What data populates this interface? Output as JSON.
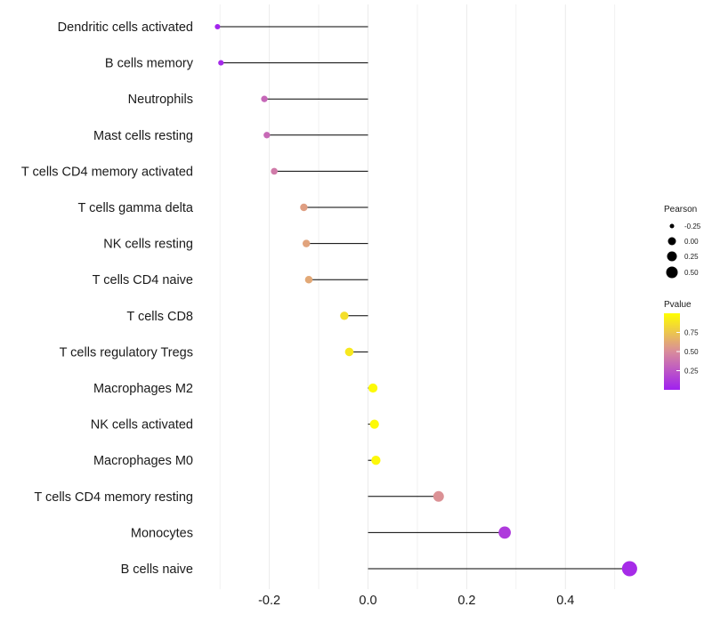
{
  "chart_data": {
    "type": "lollipop",
    "title": "",
    "xlabel": "",
    "ylabel": "",
    "xlim": [
      -0.3,
      0.54
    ],
    "xticks": [
      -0.2,
      0.0,
      0.2,
      0.4
    ],
    "xtick_labels": [
      "-0.2",
      "0.0",
      "0.2",
      "0.4"
    ],
    "categories": [
      "Dendritic cells activated",
      "B cells memory",
      "Neutrophils",
      "Mast cells resting",
      "T cells CD4 memory activated",
      "T cells gamma delta",
      "NK cells resting",
      "T cells CD4 naive",
      "T cells CD8",
      "T cells regulatory  Tregs",
      "Macrophages M2",
      "NK cells activated",
      "Macrophages M0",
      "T cells CD4 memory resting",
      "Monocytes",
      "B cells naive"
    ],
    "pearson": [
      -0.305,
      -0.298,
      -0.21,
      -0.205,
      -0.19,
      -0.13,
      -0.125,
      -0.12,
      -0.048,
      -0.038,
      0.01,
      0.013,
      0.016,
      0.143,
      0.277,
      0.53
    ],
    "pvalue": [
      0.02,
      0.04,
      0.33,
      0.34,
      0.42,
      0.58,
      0.6,
      0.62,
      0.86,
      0.9,
      0.98,
      0.98,
      0.97,
      0.52,
      0.12,
      0.05
    ],
    "legend": {
      "size_title": "Pearson",
      "size_values": [
        -0.25,
        0.0,
        0.25,
        0.5
      ],
      "size_labels": [
        "-0.25",
        "0.00",
        "0.25",
        "0.50"
      ],
      "color_title": "Pvalue",
      "color_values": [
        0.25,
        0.5,
        0.75
      ],
      "color_labels": [
        "0.25",
        "0.50",
        "0.75"
      ],
      "color_range": [
        0.0,
        1.0
      ],
      "placement": "right"
    },
    "colors": {
      "low": "#a020f0",
      "mid": "#d98c9b",
      "high": "#ffff00",
      "segment": "#000000",
      "grid": "#ebebeb"
    }
  }
}
